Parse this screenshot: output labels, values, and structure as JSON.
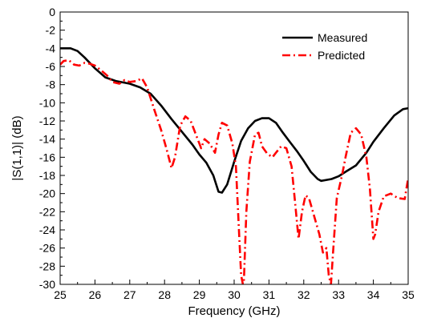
{
  "chart_data": {
    "type": "line",
    "title": "",
    "xlabel": "Frequency (GHz)",
    "ylabel": "|S(1,1)| (dB)",
    "xlim": [
      25,
      35
    ],
    "ylim": [
      -30,
      0
    ],
    "x_ticks": [
      "25",
      "26",
      "27",
      "28",
      "29",
      "30",
      "31",
      "32",
      "33",
      "34",
      "35"
    ],
    "y_ticks": [
      "0",
      "-2",
      "-4",
      "-6",
      "-8",
      "-10",
      "-12",
      "-14",
      "-16",
      "-18",
      "-20",
      "-22",
      "-24",
      "-26",
      "-28",
      "-30"
    ],
    "grid": false,
    "legend_position": "top-right",
    "series": [
      {
        "name": "Measured",
        "color": "#000000",
        "style": "solid",
        "points": [
          [
            25.0,
            -4.0
          ],
          [
            25.3,
            -4.0
          ],
          [
            25.5,
            -4.3
          ],
          [
            25.7,
            -5.0
          ],
          [
            26.0,
            -6.2
          ],
          [
            26.3,
            -7.2
          ],
          [
            26.6,
            -7.6
          ],
          [
            27.0,
            -7.9
          ],
          [
            27.3,
            -8.3
          ],
          [
            27.6,
            -9.0
          ],
          [
            27.9,
            -10.3
          ],
          [
            28.2,
            -11.8
          ],
          [
            28.5,
            -13.2
          ],
          [
            28.8,
            -14.6
          ],
          [
            29.0,
            -15.7
          ],
          [
            29.2,
            -16.6
          ],
          [
            29.4,
            -18.0
          ],
          [
            29.55,
            -19.8
          ],
          [
            29.65,
            -19.9
          ],
          [
            29.8,
            -19.0
          ],
          [
            30.0,
            -16.5
          ],
          [
            30.2,
            -14.2
          ],
          [
            30.4,
            -12.8
          ],
          [
            30.6,
            -12.0
          ],
          [
            30.8,
            -11.7
          ],
          [
            31.0,
            -11.7
          ],
          [
            31.2,
            -12.2
          ],
          [
            31.4,
            -13.3
          ],
          [
            31.6,
            -14.3
          ],
          [
            31.8,
            -15.3
          ],
          [
            32.0,
            -16.4
          ],
          [
            32.2,
            -17.6
          ],
          [
            32.4,
            -18.4
          ],
          [
            32.5,
            -18.6
          ],
          [
            32.8,
            -18.4
          ],
          [
            33.0,
            -18.1
          ],
          [
            33.2,
            -17.6
          ],
          [
            33.5,
            -16.9
          ],
          [
            33.8,
            -15.5
          ],
          [
            34.0,
            -14.3
          ],
          [
            34.3,
            -12.8
          ],
          [
            34.6,
            -11.4
          ],
          [
            34.85,
            -10.7
          ],
          [
            35.0,
            -10.6
          ]
        ]
      },
      {
        "name": "Predicted",
        "color": "#ff0000",
        "style": "dash-dot",
        "points": [
          [
            25.0,
            -5.8
          ],
          [
            25.1,
            -5.4
          ],
          [
            25.25,
            -5.3
          ],
          [
            25.4,
            -5.8
          ],
          [
            25.55,
            -5.9
          ],
          [
            25.7,
            -5.6
          ],
          [
            25.85,
            -5.7
          ],
          [
            26.0,
            -5.9
          ],
          [
            26.2,
            -6.5
          ],
          [
            26.35,
            -7.0
          ],
          [
            26.5,
            -7.7
          ],
          [
            26.7,
            -7.9
          ],
          [
            26.85,
            -7.5
          ],
          [
            27.0,
            -7.7
          ],
          [
            27.2,
            -7.6
          ],
          [
            27.35,
            -7.3
          ],
          [
            27.5,
            -8.3
          ],
          [
            27.7,
            -10.7
          ],
          [
            27.9,
            -13.0
          ],
          [
            28.05,
            -15.0
          ],
          [
            28.2,
            -17.2
          ],
          [
            28.3,
            -16.0
          ],
          [
            28.45,
            -12.5
          ],
          [
            28.6,
            -11.5
          ],
          [
            28.75,
            -12.0
          ],
          [
            28.9,
            -13.5
          ],
          [
            29.05,
            -15.0
          ],
          [
            29.15,
            -14.0
          ],
          [
            29.3,
            -14.5
          ],
          [
            29.45,
            -15.5
          ],
          [
            29.55,
            -13.5
          ],
          [
            29.65,
            -12.2
          ],
          [
            29.8,
            -12.5
          ],
          [
            29.95,
            -14.5
          ],
          [
            30.05,
            -17.0
          ],
          [
            30.15,
            -25.0
          ],
          [
            30.2,
            -29.0
          ],
          [
            30.25,
            -30.0
          ],
          [
            30.28,
            -29.5
          ],
          [
            30.35,
            -22.0
          ],
          [
            30.45,
            -16.5
          ],
          [
            30.6,
            -13.5
          ],
          [
            30.7,
            -13.3
          ],
          [
            30.8,
            -14.8
          ],
          [
            30.95,
            -15.6
          ],
          [
            31.1,
            -16.0
          ],
          [
            31.2,
            -15.5
          ],
          [
            31.35,
            -14.8
          ],
          [
            31.5,
            -15.0
          ],
          [
            31.65,
            -17.0
          ],
          [
            31.75,
            -21.0
          ],
          [
            31.85,
            -25.0
          ],
          [
            31.95,
            -22.0
          ],
          [
            32.05,
            -20.2
          ],
          [
            32.15,
            -20.5
          ],
          [
            32.3,
            -22.5
          ],
          [
            32.45,
            -24.5
          ],
          [
            32.55,
            -26.5
          ],
          [
            32.65,
            -26.0
          ],
          [
            32.72,
            -29.0
          ],
          [
            32.78,
            -30.0
          ],
          [
            32.85,
            -26.0
          ],
          [
            32.95,
            -20.5
          ],
          [
            33.1,
            -18.0
          ],
          [
            33.2,
            -16.0
          ],
          [
            33.35,
            -13.3
          ],
          [
            33.5,
            -12.8
          ],
          [
            33.65,
            -13.5
          ],
          [
            33.8,
            -16.0
          ],
          [
            33.9,
            -19.5
          ],
          [
            34.0,
            -25.0
          ],
          [
            34.05,
            -24.5
          ],
          [
            34.15,
            -22.0
          ],
          [
            34.3,
            -20.3
          ],
          [
            34.5,
            -20.0
          ],
          [
            34.7,
            -20.5
          ],
          [
            34.9,
            -20.6
          ],
          [
            35.0,
            -18.3
          ]
        ]
      }
    ]
  }
}
